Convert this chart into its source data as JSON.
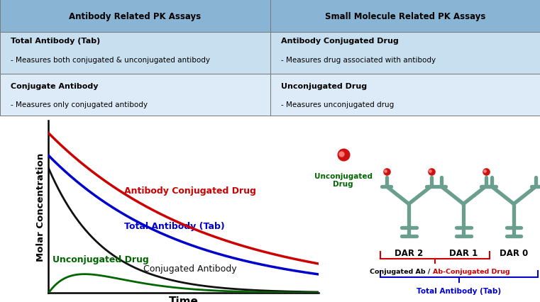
{
  "table": {
    "header_left": "Antibody Related PK Assays",
    "header_right": "Small Molecule Related PK Assays",
    "header_bg": "#8ab4d4",
    "row1_left_title": "Total Antibody (Tab)",
    "row1_left_desc": "- Measures both conjugated & unconjugated antibody",
    "row1_right_title": "Antibody Conjugated Drug",
    "row1_right_desc": "- Measures drug associated with antibody",
    "row2_left_title": "Conjugate Antibody",
    "row2_left_desc": "- Measures only conjugated antibody",
    "row2_right_title": "Unconjugated Drug",
    "row2_right_desc": "- Measures unconjugated drug",
    "row1_bg": "#c8dff0",
    "row2_bg": "#ddeaf7"
  },
  "curves": {
    "x_max": 10,
    "acd_color": "#cc0000",
    "acd_label": "Antibody Conjugated Drug",
    "tab_color": "#0000cc",
    "tab_label": "Total Antibody (Tab)",
    "ca_color": "#111111",
    "ca_label": "Conjugated Antibody",
    "ud_color": "#006600",
    "ud_label": "Unconjugated Drug"
  },
  "axis": {
    "ylabel": "Molar Concentration",
    "xlabel": "Time",
    "bg_color": "#ffffff"
  },
  "diagram": {
    "dar2_label": "DAR 2",
    "dar1_label": "DAR 1",
    "dar0_label": "DAR 0",
    "unconj_label": "Unconjugated\nDrug",
    "unconj_color": "#006600",
    "conj_brace_label_black": "Conjugated Ab / ",
    "conj_brace_label_red": "Ab-Conjugated Drug",
    "tab_brace_label": "Total Antibody (Tab)",
    "tab_brace_color": "#0000cc",
    "ab_color": "#6a9e8e",
    "dot_color": "#cc1111"
  }
}
